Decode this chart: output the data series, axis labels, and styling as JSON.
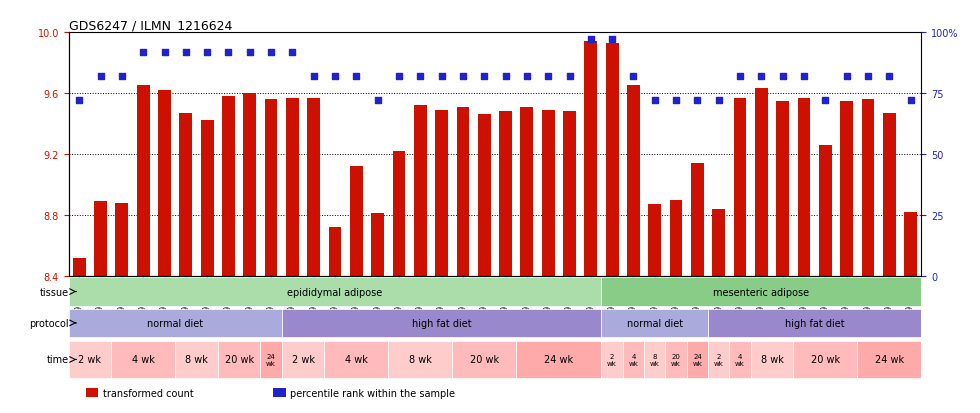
{
  "title": "GDS6247 / ILMN_1216624",
  "samples": [
    "GSM971546",
    "GSM971547",
    "GSM971548",
    "GSM971549",
    "GSM971550",
    "GSM971551",
    "GSM971552",
    "GSM971553",
    "GSM971554",
    "GSM971555",
    "GSM971556",
    "GSM971557",
    "GSM971558",
    "GSM971559",
    "GSM971560",
    "GSM971561",
    "GSM971562",
    "GSM971563",
    "GSM971564",
    "GSM971565",
    "GSM971566",
    "GSM971567",
    "GSM971568",
    "GSM971569",
    "GSM971570",
    "GSM971571",
    "GSM971572",
    "GSM971573",
    "GSM971574",
    "GSM971575",
    "GSM971576",
    "GSM971577",
    "GSM971578",
    "GSM971579",
    "GSM971580",
    "GSM971581",
    "GSM971582",
    "GSM971583",
    "GSM971584",
    "GSM971585"
  ],
  "bar_values": [
    8.52,
    8.89,
    8.88,
    9.65,
    9.62,
    9.47,
    9.42,
    9.58,
    9.6,
    9.56,
    9.57,
    9.57,
    8.72,
    9.12,
    8.81,
    9.22,
    9.52,
    9.49,
    9.51,
    9.46,
    9.48,
    9.51,
    9.49,
    9.48,
    9.94,
    9.93,
    9.65,
    8.87,
    8.9,
    9.14,
    8.84,
    9.57,
    9.63,
    9.55,
    9.57,
    9.26,
    9.55,
    9.56,
    9.47,
    8.82
  ],
  "percentile_values": [
    72,
    82,
    82,
    92,
    92,
    92,
    92,
    92,
    92,
    92,
    92,
    82,
    82,
    82,
    72,
    82,
    82,
    82,
    82,
    82,
    82,
    82,
    82,
    82,
    97,
    97,
    82,
    72,
    72,
    72,
    72,
    82,
    82,
    82,
    82,
    72,
    82,
    82,
    82,
    72
  ],
  "ylim_left": [
    8.4,
    10.0
  ],
  "ylim_right": [
    0,
    100
  ],
  "yticks_left": [
    8.4,
    8.8,
    9.2,
    9.6,
    10.0
  ],
  "yticks_right": [
    0,
    25,
    50,
    75,
    100
  ],
  "bar_color": "#cc1100",
  "dot_color": "#2222cc",
  "background_color": "#ffffff",
  "tissue_groups": [
    {
      "label": "epididymal adipose",
      "start": 0,
      "end": 25,
      "color": "#aaddaa"
    },
    {
      "label": "mesenteric adipose",
      "start": 25,
      "end": 40,
      "color": "#88cc88"
    }
  ],
  "protocol_groups": [
    {
      "label": "normal diet",
      "start": 0,
      "end": 10,
      "color": "#aaaadd"
    },
    {
      "label": "high fat diet",
      "start": 10,
      "end": 25,
      "color": "#9988cc"
    },
    {
      "label": "normal diet",
      "start": 25,
      "end": 30,
      "color": "#aaaadd"
    },
    {
      "label": "high fat diet",
      "start": 30,
      "end": 40,
      "color": "#9988cc"
    }
  ],
  "time_groups": [
    {
      "label": "2 wk",
      "start": 0,
      "end": 2,
      "color": "#ffcccc"
    },
    {
      "label": "4 wk",
      "start": 2,
      "end": 5,
      "color": "#ffbbbb"
    },
    {
      "label": "8 wk",
      "start": 5,
      "end": 7,
      "color": "#ffcccc"
    },
    {
      "label": "20 wk",
      "start": 7,
      "end": 9,
      "color": "#ffbbbb"
    },
    {
      "label": "24 wk",
      "start": 9,
      "end": 10,
      "color": "#ffaaaa"
    },
    {
      "label": "2 wk",
      "start": 10,
      "end": 12,
      "color": "#ffcccc"
    },
    {
      "label": "4 wk",
      "start": 12,
      "end": 15,
      "color": "#ffbbbb"
    },
    {
      "label": "8 wk",
      "start": 15,
      "end": 18,
      "color": "#ffcccc"
    },
    {
      "label": "20 wk",
      "start": 18,
      "end": 21,
      "color": "#ffbbbb"
    },
    {
      "label": "24 wk",
      "start": 21,
      "end": 25,
      "color": "#ffaaaa"
    },
    {
      "label": "2 wk",
      "start": 25,
      "end": 26,
      "color": "#ffcccc"
    },
    {
      "label": "4 wk",
      "start": 26,
      "end": 27,
      "color": "#ffbbbb"
    },
    {
      "label": "8 wk",
      "start": 27,
      "end": 28,
      "color": "#ffcccc"
    },
    {
      "label": "20 wk",
      "start": 28,
      "end": 29,
      "color": "#ffbbbb"
    },
    {
      "label": "24 wk",
      "start": 29,
      "end": 30,
      "color": "#ffaaaa"
    },
    {
      "label": "2 wk",
      "start": 30,
      "end": 31,
      "color": "#ffcccc"
    },
    {
      "label": "4 wk",
      "start": 31,
      "end": 32,
      "color": "#ffbbbb"
    },
    {
      "label": "8 wk",
      "start": 32,
      "end": 34,
      "color": "#ffcccc"
    },
    {
      "label": "20 wk",
      "start": 34,
      "end": 37,
      "color": "#ffbbbb"
    },
    {
      "label": "24 wk",
      "start": 37,
      "end": 40,
      "color": "#ffaaaa"
    }
  ],
  "row_labels": [
    "tissue",
    "protocol",
    "time"
  ],
  "legend_items": [
    {
      "label": "transformed count",
      "color": "#cc1100",
      "marker": "s"
    },
    {
      "label": "percentile rank within the sample",
      "color": "#2222cc",
      "marker": "s"
    }
  ]
}
